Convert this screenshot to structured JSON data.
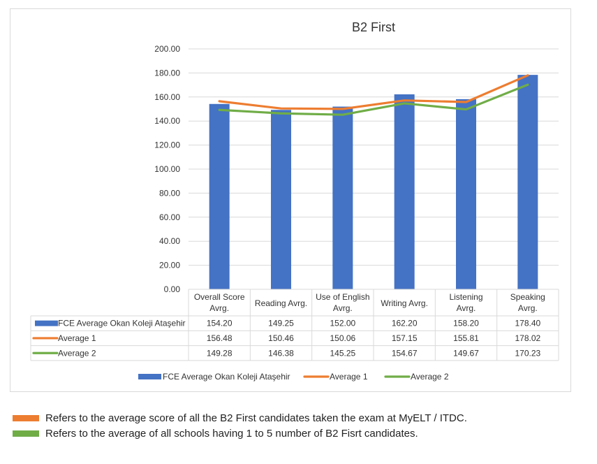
{
  "chart_data": {
    "type": "bar",
    "title": "B2 First",
    "xlabel": "",
    "ylabel": "",
    "ylim": [
      0,
      200
    ],
    "y_ticks": [
      "0.00",
      "20.00",
      "40.00",
      "60.00",
      "80.00",
      "100.00",
      "120.00",
      "140.00",
      "160.00",
      "180.00",
      "200.00"
    ],
    "grid": true,
    "categories": [
      [
        "Overall Score",
        "Avrg."
      ],
      [
        "Reading Avrg."
      ],
      [
        "Use of English",
        "Avrg."
      ],
      [
        "Writing Avrg."
      ],
      [
        "Listening",
        "Avrg."
      ],
      [
        "Speaking",
        "Avrg."
      ]
    ],
    "series": [
      {
        "name": "FCE Average Okan Koleji Ataşehir",
        "kind": "bar",
        "color": "#4472C4",
        "values": [
          154.2,
          149.25,
          152.0,
          162.2,
          158.2,
          178.4
        ],
        "labels": [
          "154.20",
          "149.25",
          "152.00",
          "162.20",
          "158.20",
          "178.40"
        ]
      },
      {
        "name": "Average 1",
        "kind": "line",
        "color": "#ED7D31",
        "values": [
          156.48,
          150.46,
          150.06,
          157.15,
          155.81,
          178.02
        ],
        "labels": [
          "156.48",
          "150.46",
          "150.06",
          "157.15",
          "155.81",
          "178.02"
        ]
      },
      {
        "name": "Average 2",
        "kind": "line",
        "color": "#70AD47",
        "values": [
          149.28,
          146.38,
          145.25,
          154.67,
          149.67,
          170.23
        ],
        "labels": [
          "149.28",
          "146.38",
          "145.25",
          "154.67",
          "149.67",
          "170.23"
        ]
      }
    ],
    "legend_position": "bottom",
    "data_table": true
  },
  "notes": [
    {
      "color": "#ED7D31",
      "text": "Refers to the average score of all the B2 First candidates taken the exam at MyELT / ITDC."
    },
    {
      "color": "#70AD47",
      "text": "Refers to the average of all schools having 1 to 5 number of B2 Fisrt candidates."
    }
  ]
}
